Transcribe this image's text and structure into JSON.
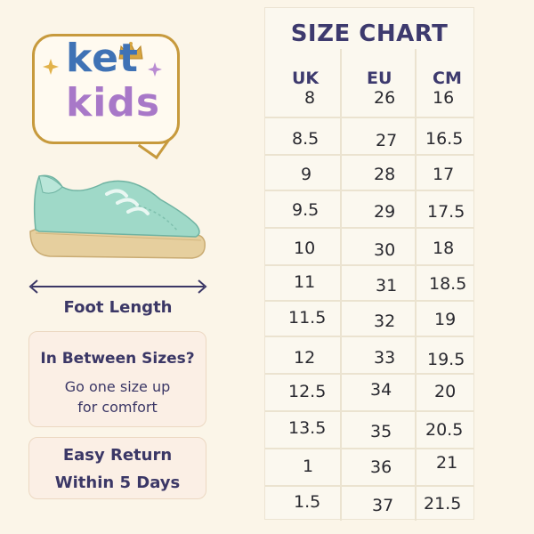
{
  "logo": {
    "line1": "ket",
    "line2": "kids",
    "icons": [
      "crown-icon",
      "sparkle-icon"
    ],
    "colors": {
      "ket": "#3f72b5",
      "kids": "#a878c8",
      "border": "#c79a3d"
    }
  },
  "illustration": {
    "shoe": "sneaker-icon",
    "arrow": "double-arrow-icon",
    "label": "Foot Length"
  },
  "tips": {
    "between": {
      "title": "In Between Sizes?",
      "line1": "Go one size up",
      "line2": "for comfort"
    },
    "returns": {
      "line1": "Easy Return",
      "line2": "Within 5 Days"
    }
  },
  "size_chart": {
    "title": "SIZE CHART",
    "headers": [
      "UK",
      "EU",
      "CM"
    ],
    "rows": [
      [
        "8",
        "26",
        "16"
      ],
      [
        "8.5",
        "27",
        "16.5"
      ],
      [
        "9",
        "28",
        "17"
      ],
      [
        "9.5",
        "29",
        "17.5"
      ],
      [
        "10",
        "30",
        "18"
      ],
      [
        "11",
        "31",
        "18.5"
      ],
      [
        "11.5",
        "32",
        "19"
      ],
      [
        "12",
        "33",
        "19.5"
      ],
      [
        "12.5",
        "34",
        "20"
      ],
      [
        "13.5",
        "35",
        "20.5"
      ],
      [
        "1",
        "36",
        "21"
      ],
      [
        "1.5",
        "37",
        "21.5"
      ]
    ]
  }
}
